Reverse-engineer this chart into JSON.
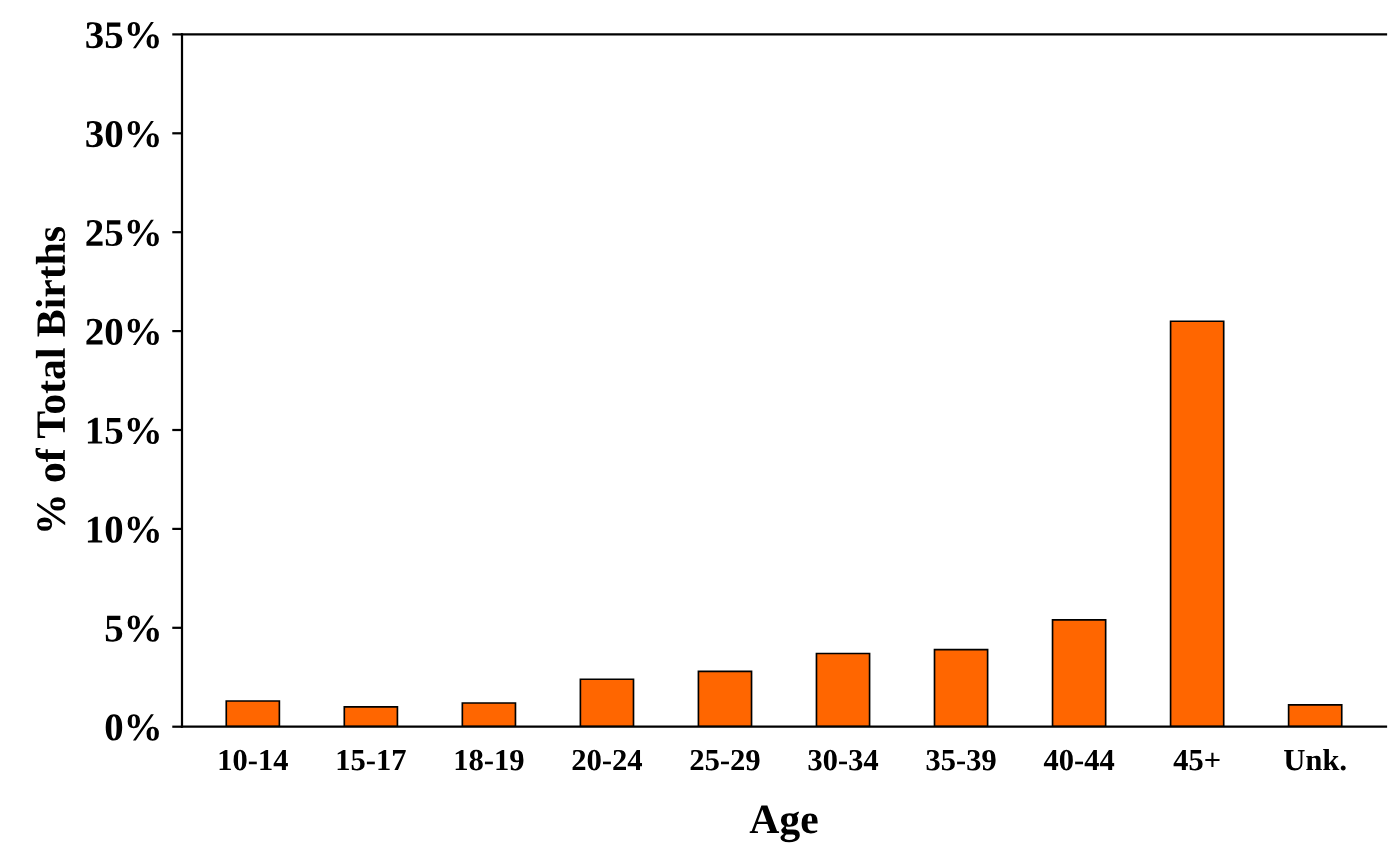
{
  "chart_data": {
    "type": "bar",
    "xlabel": "Age",
    "ylabel": "% of Total Births",
    "categories": [
      "10-14",
      "15-17",
      "18-19",
      "20-24",
      "25-29",
      "30-34",
      "35-39",
      "40-44",
      "45+",
      "Unk."
    ],
    "values": [
      1.3,
      1.0,
      1.2,
      2.4,
      2.8,
      3.7,
      3.9,
      5.4,
      20.5,
      1.1
    ],
    "color": "#ff6600",
    "ylim": [
      0,
      35
    ],
    "yticks": [
      {
        "value": 0,
        "label": "0%"
      },
      {
        "value": 5,
        "label": "5%"
      },
      {
        "value": 10,
        "label": "10%"
      },
      {
        "value": 15,
        "label": "15%"
      },
      {
        "value": 20,
        "label": "20%"
      },
      {
        "value": 25,
        "label": "25%"
      },
      {
        "value": 30,
        "label": "30%"
      },
      {
        "value": 35,
        "label": "35%"
      }
    ],
    "grid": false
  }
}
